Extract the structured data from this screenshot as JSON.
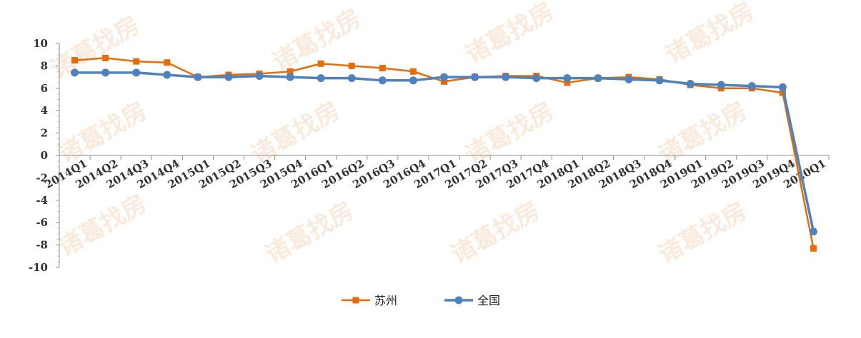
{
  "chart_data": {
    "type": "line",
    "categories": [
      "2014Q1",
      "2014Q2",
      "2014Q3",
      "2014Q4",
      "2015Q1",
      "2015Q2",
      "2015Q3",
      "2015Q4",
      "2016Q1",
      "2016Q2",
      "2016Q3",
      "2016Q4",
      "2017Q1",
      "2017Q2",
      "2017Q3",
      "2017Q4",
      "2018Q1",
      "2018Q2",
      "2018Q3",
      "2018Q4",
      "2019Q1",
      "2019Q2",
      "2019Q3",
      "2019Q4",
      "2020Q1"
    ],
    "series": [
      {
        "name": "苏州",
        "color": "#e46c0a",
        "marker": "square",
        "values": [
          8.5,
          8.7,
          8.4,
          8.3,
          7.0,
          7.2,
          7.3,
          7.5,
          8.2,
          8.0,
          7.8,
          7.5,
          6.6,
          7.0,
          7.1,
          7.1,
          6.5,
          6.9,
          7.0,
          6.8,
          6.3,
          6.0,
          6.0,
          5.6,
          -8.3
        ]
      },
      {
        "name": "全国",
        "color": "#4f81bd",
        "marker": "circle",
        "values": [
          7.4,
          7.4,
          7.4,
          7.2,
          7.0,
          7.0,
          7.1,
          7.0,
          6.9,
          6.9,
          6.7,
          6.7,
          7.0,
          7.0,
          7.0,
          6.9,
          6.9,
          6.9,
          6.8,
          6.7,
          6.4,
          6.3,
          6.2,
          6.1,
          -6.8
        ]
      }
    ],
    "yticks": [
      "10",
      "8",
      "6",
      "4",
      "2",
      "0",
      "-2",
      "-4",
      "-6",
      "-8",
      "-10"
    ],
    "ylim": [
      -10,
      10
    ],
    "grid": false,
    "legend_position": "bottom-center",
    "title": "",
    "xlabel": "",
    "ylabel": ""
  },
  "watermark": {
    "text": "诸葛找房",
    "color": "#f7d9c1"
  }
}
